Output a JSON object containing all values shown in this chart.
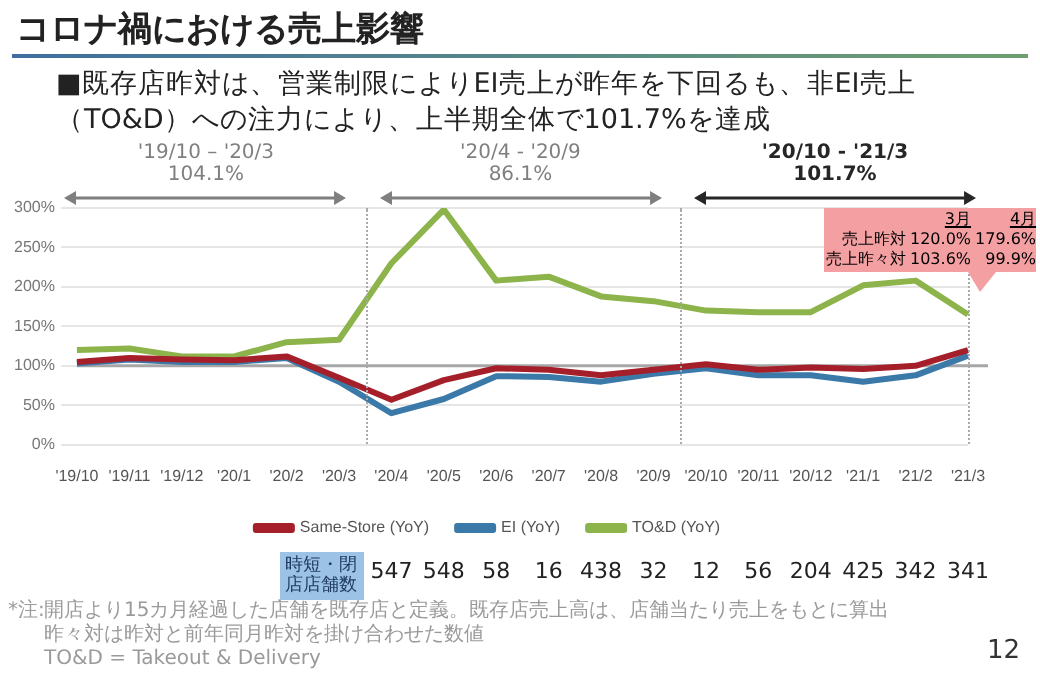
{
  "chart_data": {
    "type": "line",
    "title": "コロナ禍における売上影響",
    "subtitle": "■既存店昨対は、営業制限によりEI売上が昨年を下回るも、非EI売上（TO&D）への注力により、上半期全体で101.7%を達成",
    "categories": [
      "'19/10",
      "'19/11",
      "'19/12",
      "'20/1",
      "'20/2",
      "'20/3",
      "'20/4",
      "'20/5",
      "'20/6",
      "'20/7",
      "'20/8",
      "'20/9",
      "'20/10",
      "'20/11",
      "'20/12",
      "'21/1",
      "'21/2",
      "'21/3"
    ],
    "series": [
      {
        "name": "Same-Store (YoY)",
        "color": "#a51f2b",
        "values": [
          105,
          110,
          108,
          107,
          112,
          85,
          57,
          82,
          97,
          95,
          88,
          95,
          102,
          95,
          98,
          96,
          100,
          120
        ]
      },
      {
        "name": "EI (YoY)",
        "color": "#3b79a9",
        "values": [
          103,
          108,
          105,
          105,
          110,
          80,
          40,
          58,
          87,
          86,
          80,
          90,
          97,
          88,
          88,
          80,
          88,
          113
        ]
      },
      {
        "name": "TO&D (YoY)",
        "color": "#8db34b",
        "values": [
          120,
          122,
          112,
          112,
          130,
          133,
          230,
          298,
          208,
          213,
          188,
          182,
          170,
          168,
          168,
          202,
          208,
          165
        ]
      }
    ],
    "ylim": [
      0,
      300
    ],
    "yticks": [
      {
        "value": 0,
        "label": "0%"
      },
      {
        "value": 50,
        "label": "50%"
      },
      {
        "value": 100,
        "label": "100%"
      },
      {
        "value": 150,
        "label": "150%"
      },
      {
        "value": 200,
        "label": "200%"
      },
      {
        "value": 250,
        "label": "250%"
      },
      {
        "value": 300,
        "label": "300%"
      }
    ],
    "grid": "y",
    "legend": "bottom",
    "marker": "none",
    "line_style": "solid",
    "ref_lines": [
      {
        "axis": "y",
        "value": 100,
        "color": "#a6a6a6"
      }
    ],
    "annotations": [
      "3月",
      "4月",
      "売上昨対",
      "120.0%",
      "179.6%",
      "売上昨々対",
      "103.6%",
      "99.9%",
      "時短・閉店店舗数",
      "547",
      "548",
      "58",
      "16",
      "438",
      "32",
      "12",
      "56",
      "204",
      "425",
      "342",
      "341",
      "*注:",
      "開店より15カ月経過した店舗を既存店と定義。既存店売上高は、店舗当たり売上をもとに算出",
      "昨々対は昨対と前年同月昨対を掛け合わせた数値",
      "TO&D = Takeout & Delivery",
      "12",
      "'19/10 – '20/3",
      "104.1%",
      "'20/4 - '20/9",
      "86.1%",
      "'20/10 - '21/3",
      "101.7%"
    ]
  }
}
